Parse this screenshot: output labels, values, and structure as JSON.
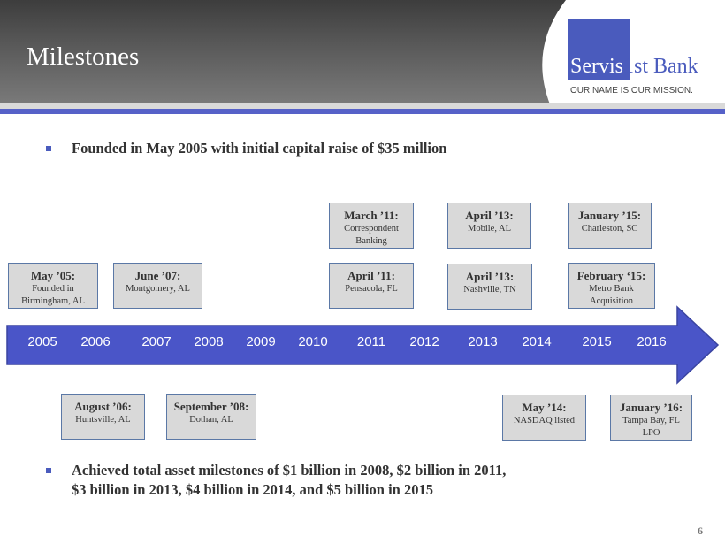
{
  "header": {
    "title": "Milestones"
  },
  "logo": {
    "part1": "Servis",
    "part2": "1st Bank",
    "tagline": "OUR NAME IS OUR MISSION."
  },
  "colors": {
    "brand": "#4a5bbd",
    "box_fill": "#d9d9d9",
    "box_border": "#5b78a6"
  },
  "bullets": [
    {
      "text": "Founded in May 2005 with initial capital raise of $35 million"
    },
    {
      "line1": "Achieved total asset milestones of $1 billion in 2008, $2 billion in 2011,",
      "line2": "$3 billion in 2013, $4 billion in 2014, and $5 billion in 2015"
    }
  ],
  "years": [
    "2005",
    "2006",
    "2007",
    "2008",
    "2009",
    "2010",
    "2011",
    "2012",
    "2013",
    "2014",
    "2015",
    "2016"
  ],
  "milestones": [
    {
      "date": "May ’05:",
      "desc": "Founded in\nBirmingham, AL"
    },
    {
      "date": "June ’07:",
      "desc": "Montgomery, AL"
    },
    {
      "date": "March ’11:",
      "desc": "Correspondent\nBanking"
    },
    {
      "date": "April ’11:",
      "desc": "Pensacola, FL"
    },
    {
      "date": "April ’13:",
      "desc": "Mobile, AL"
    },
    {
      "date": "April ’13:",
      "desc": "Nashville, TN"
    },
    {
      "date": "January ’15:",
      "desc": "Charleston, SC"
    },
    {
      "date": "February ‘15:",
      "desc": "Metro Bank\nAcquisition"
    },
    {
      "date": "August ’06:",
      "desc": "Huntsville, AL"
    },
    {
      "date": "September ’08:",
      "desc": "Dothan, AL"
    },
    {
      "date": "May ’14:",
      "desc": "NASDAQ listed"
    },
    {
      "date": "January ’16:",
      "desc": "Tampa Bay, FL\nLPO"
    }
  ],
  "page_number": "6"
}
